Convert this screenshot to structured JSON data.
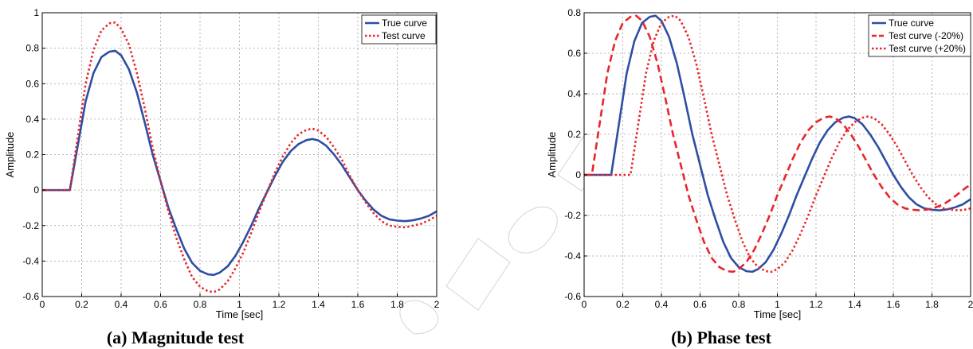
{
  "chart_data": [
    {
      "type": "line",
      "caption": "(a)  Magnitude test",
      "xlabel": "Time [sec]",
      "ylabel": "Amplitude",
      "xlim": [
        0,
        2
      ],
      "ylim": [
        -0.6,
        1
      ],
      "xticks": [
        "0",
        "0.2",
        "0.4",
        "0.6",
        "0.8",
        "1",
        "1.2",
        "1.4",
        "1.6",
        "1.8",
        "2"
      ],
      "yticks": [
        "-0.6",
        "-0.4",
        "-0.2",
        "0",
        "0.2",
        "0.4",
        "0.6",
        "0.8",
        "1"
      ],
      "grid": true,
      "legend_position": "top-right",
      "series": [
        {
          "name": "True curve",
          "color": "#2e4ea3",
          "style": "solid",
          "points": [
            [
              0,
              0
            ],
            [
              0.14,
              0
            ],
            [
              0.18,
              0.25
            ],
            [
              0.22,
              0.5
            ],
            [
              0.26,
              0.66
            ],
            [
              0.3,
              0.75
            ],
            [
              0.34,
              0.78
            ],
            [
              0.37,
              0.785
            ],
            [
              0.4,
              0.76
            ],
            [
              0.44,
              0.68
            ],
            [
              0.48,
              0.55
            ],
            [
              0.52,
              0.38
            ],
            [
              0.56,
              0.2
            ],
            [
              0.6,
              0.05
            ],
            [
              0.64,
              -0.1
            ],
            [
              0.68,
              -0.22
            ],
            [
              0.72,
              -0.33
            ],
            [
              0.76,
              -0.41
            ],
            [
              0.8,
              -0.455
            ],
            [
              0.84,
              -0.475
            ],
            [
              0.87,
              -0.478
            ],
            [
              0.9,
              -0.465
            ],
            [
              0.94,
              -0.43
            ],
            [
              0.98,
              -0.37
            ],
            [
              1.02,
              -0.29
            ],
            [
              1.06,
              -0.2
            ],
            [
              1.1,
              -0.1
            ],
            [
              1.14,
              -0.01
            ],
            [
              1.18,
              0.08
            ],
            [
              1.22,
              0.16
            ],
            [
              1.26,
              0.22
            ],
            [
              1.3,
              0.26
            ],
            [
              1.34,
              0.282
            ],
            [
              1.37,
              0.288
            ],
            [
              1.4,
              0.28
            ],
            [
              1.44,
              0.25
            ],
            [
              1.48,
              0.2
            ],
            [
              1.52,
              0.14
            ],
            [
              1.56,
              0.07
            ],
            [
              1.6,
              0.0
            ],
            [
              1.64,
              -0.06
            ],
            [
              1.68,
              -0.11
            ],
            [
              1.72,
              -0.145
            ],
            [
              1.76,
              -0.165
            ],
            [
              1.8,
              -0.172
            ],
            [
              1.84,
              -0.175
            ],
            [
              1.88,
              -0.17
            ],
            [
              1.92,
              -0.16
            ],
            [
              1.96,
              -0.145
            ],
            [
              2.0,
              -0.12
            ]
          ]
        },
        {
          "name": "Test curve",
          "color": "#e8262a",
          "style": "dotted",
          "points": [
            [
              0,
              0
            ],
            [
              0.14,
              0
            ],
            [
              0.18,
              0.3
            ],
            [
              0.22,
              0.6
            ],
            [
              0.26,
              0.79
            ],
            [
              0.3,
              0.9
            ],
            [
              0.34,
              0.94
            ],
            [
              0.37,
              0.945
            ],
            [
              0.4,
              0.91
            ],
            [
              0.44,
              0.82
            ],
            [
              0.48,
              0.66
            ],
            [
              0.52,
              0.46
            ],
            [
              0.56,
              0.24
            ],
            [
              0.6,
              0.05
            ],
            [
              0.64,
              -0.12
            ],
            [
              0.68,
              -0.27
            ],
            [
              0.72,
              -0.39
            ],
            [
              0.76,
              -0.49
            ],
            [
              0.8,
              -0.545
            ],
            [
              0.84,
              -0.57
            ],
            [
              0.87,
              -0.575
            ],
            [
              0.9,
              -0.56
            ],
            [
              0.94,
              -0.515
            ],
            [
              0.98,
              -0.44
            ],
            [
              1.02,
              -0.35
            ],
            [
              1.06,
              -0.24
            ],
            [
              1.1,
              -0.12
            ],
            [
              1.14,
              -0.01
            ],
            [
              1.18,
              0.1
            ],
            [
              1.22,
              0.19
            ],
            [
              1.26,
              0.265
            ],
            [
              1.3,
              0.315
            ],
            [
              1.34,
              0.34
            ],
            [
              1.37,
              0.346
            ],
            [
              1.4,
              0.335
            ],
            [
              1.44,
              0.3
            ],
            [
              1.48,
              0.24
            ],
            [
              1.52,
              0.17
            ],
            [
              1.56,
              0.08
            ],
            [
              1.6,
              0.0
            ],
            [
              1.64,
              -0.07
            ],
            [
              1.68,
              -0.13
            ],
            [
              1.72,
              -0.175
            ],
            [
              1.76,
              -0.2
            ],
            [
              1.8,
              -0.207
            ],
            [
              1.84,
              -0.21
            ],
            [
              1.88,
              -0.2
            ],
            [
              1.92,
              -0.19
            ],
            [
              1.96,
              -0.17
            ],
            [
              2.0,
              -0.145
            ]
          ]
        }
      ]
    },
    {
      "type": "line",
      "caption": "(b)  Phase test",
      "xlabel": "Time [sec]",
      "ylabel": "Amplitude",
      "xlim": [
        0,
        2
      ],
      "ylim": [
        -0.6,
        0.8
      ],
      "xticks": [
        "0",
        "0.2",
        "0.4",
        "0.6",
        "0.8",
        "1",
        "1.2",
        "1.4",
        "1.6",
        "1.8",
        "2"
      ],
      "yticks": [
        "-0.6",
        "-0.4",
        "-0.2",
        "0",
        "0.2",
        "0.4",
        "0.6",
        "0.8"
      ],
      "grid": true,
      "legend_position": "top-right",
      "series": [
        {
          "name": "True curve",
          "color": "#2e4ea3",
          "style": "solid",
          "points": [
            [
              0,
              0
            ],
            [
              0.14,
              0
            ],
            [
              0.18,
              0.25
            ],
            [
              0.22,
              0.5
            ],
            [
              0.26,
              0.66
            ],
            [
              0.3,
              0.75
            ],
            [
              0.34,
              0.78
            ],
            [
              0.37,
              0.785
            ],
            [
              0.4,
              0.76
            ],
            [
              0.44,
              0.68
            ],
            [
              0.48,
              0.55
            ],
            [
              0.52,
              0.38
            ],
            [
              0.56,
              0.2
            ],
            [
              0.6,
              0.05
            ],
            [
              0.64,
              -0.1
            ],
            [
              0.68,
              -0.22
            ],
            [
              0.72,
              -0.33
            ],
            [
              0.76,
              -0.41
            ],
            [
              0.8,
              -0.455
            ],
            [
              0.84,
              -0.475
            ],
            [
              0.87,
              -0.478
            ],
            [
              0.9,
              -0.465
            ],
            [
              0.94,
              -0.43
            ],
            [
              0.98,
              -0.37
            ],
            [
              1.02,
              -0.29
            ],
            [
              1.06,
              -0.2
            ],
            [
              1.1,
              -0.1
            ],
            [
              1.14,
              -0.01
            ],
            [
              1.18,
              0.08
            ],
            [
              1.22,
              0.16
            ],
            [
              1.26,
              0.22
            ],
            [
              1.3,
              0.26
            ],
            [
              1.34,
              0.282
            ],
            [
              1.37,
              0.288
            ],
            [
              1.4,
              0.28
            ],
            [
              1.44,
              0.25
            ],
            [
              1.48,
              0.2
            ],
            [
              1.52,
              0.14
            ],
            [
              1.56,
              0.07
            ],
            [
              1.6,
              0.0
            ],
            [
              1.64,
              -0.06
            ],
            [
              1.68,
              -0.11
            ],
            [
              1.72,
              -0.145
            ],
            [
              1.76,
              -0.165
            ],
            [
              1.8,
              -0.172
            ],
            [
              1.84,
              -0.175
            ],
            [
              1.88,
              -0.17
            ],
            [
              1.92,
              -0.16
            ],
            [
              1.96,
              -0.145
            ],
            [
              2.0,
              -0.12
            ]
          ]
        },
        {
          "name": "Test curve (-20%)",
          "color": "#e8262a",
          "style": "dashed",
          "points": [
            [
              0,
              0
            ],
            [
              0.04,
              0
            ],
            [
              0.08,
              0.25
            ],
            [
              0.12,
              0.5
            ],
            [
              0.16,
              0.66
            ],
            [
              0.2,
              0.75
            ],
            [
              0.24,
              0.78
            ],
            [
              0.27,
              0.785
            ],
            [
              0.3,
              0.76
            ],
            [
              0.34,
              0.68
            ],
            [
              0.38,
              0.55
            ],
            [
              0.42,
              0.38
            ],
            [
              0.46,
              0.2
            ],
            [
              0.5,
              0.05
            ],
            [
              0.54,
              -0.1
            ],
            [
              0.58,
              -0.22
            ],
            [
              0.62,
              -0.33
            ],
            [
              0.66,
              -0.41
            ],
            [
              0.7,
              -0.455
            ],
            [
              0.74,
              -0.475
            ],
            [
              0.77,
              -0.478
            ],
            [
              0.8,
              -0.465
            ],
            [
              0.84,
              -0.43
            ],
            [
              0.88,
              -0.37
            ],
            [
              0.92,
              -0.29
            ],
            [
              0.96,
              -0.2
            ],
            [
              1.0,
              -0.1
            ],
            [
              1.04,
              -0.01
            ],
            [
              1.08,
              0.08
            ],
            [
              1.12,
              0.16
            ],
            [
              1.16,
              0.22
            ],
            [
              1.2,
              0.26
            ],
            [
              1.24,
              0.282
            ],
            [
              1.27,
              0.288
            ],
            [
              1.3,
              0.28
            ],
            [
              1.34,
              0.25
            ],
            [
              1.38,
              0.2
            ],
            [
              1.42,
              0.14
            ],
            [
              1.46,
              0.07
            ],
            [
              1.5,
              0.0
            ],
            [
              1.54,
              -0.06
            ],
            [
              1.58,
              -0.11
            ],
            [
              1.62,
              -0.145
            ],
            [
              1.66,
              -0.165
            ],
            [
              1.7,
              -0.172
            ],
            [
              1.74,
              -0.175
            ],
            [
              1.78,
              -0.17
            ],
            [
              1.82,
              -0.16
            ],
            [
              1.86,
              -0.145
            ],
            [
              1.9,
              -0.12
            ],
            [
              1.94,
              -0.09
            ],
            [
              1.98,
              -0.06
            ],
            [
              2.0,
              -0.05
            ]
          ]
        },
        {
          "name": "Test curve (+20%)",
          "color": "#e8262a",
          "style": "dotted",
          "points": [
            [
              0,
              0
            ],
            [
              0.24,
              0
            ],
            [
              0.28,
              0.25
            ],
            [
              0.32,
              0.5
            ],
            [
              0.36,
              0.66
            ],
            [
              0.4,
              0.75
            ],
            [
              0.44,
              0.78
            ],
            [
              0.47,
              0.785
            ],
            [
              0.5,
              0.76
            ],
            [
              0.54,
              0.68
            ],
            [
              0.58,
              0.55
            ],
            [
              0.62,
              0.38
            ],
            [
              0.66,
              0.2
            ],
            [
              0.7,
              0.05
            ],
            [
              0.74,
              -0.1
            ],
            [
              0.78,
              -0.22
            ],
            [
              0.82,
              -0.33
            ],
            [
              0.86,
              -0.41
            ],
            [
              0.9,
              -0.455
            ],
            [
              0.94,
              -0.475
            ],
            [
              0.97,
              -0.478
            ],
            [
              1.0,
              -0.465
            ],
            [
              1.04,
              -0.43
            ],
            [
              1.08,
              -0.37
            ],
            [
              1.12,
              -0.29
            ],
            [
              1.16,
              -0.2
            ],
            [
              1.2,
              -0.1
            ],
            [
              1.24,
              -0.01
            ],
            [
              1.28,
              0.08
            ],
            [
              1.32,
              0.16
            ],
            [
              1.36,
              0.22
            ],
            [
              1.4,
              0.26
            ],
            [
              1.44,
              0.282
            ],
            [
              1.47,
              0.288
            ],
            [
              1.5,
              0.28
            ],
            [
              1.54,
              0.25
            ],
            [
              1.58,
              0.2
            ],
            [
              1.62,
              0.14
            ],
            [
              1.66,
              0.07
            ],
            [
              1.7,
              0.0
            ],
            [
              1.74,
              -0.06
            ],
            [
              1.78,
              -0.11
            ],
            [
              1.82,
              -0.145
            ],
            [
              1.86,
              -0.165
            ],
            [
              1.9,
              -0.172
            ],
            [
              1.94,
              -0.175
            ],
            [
              1.98,
              -0.17
            ],
            [
              2.0,
              -0.165
            ]
          ]
        }
      ]
    }
  ]
}
